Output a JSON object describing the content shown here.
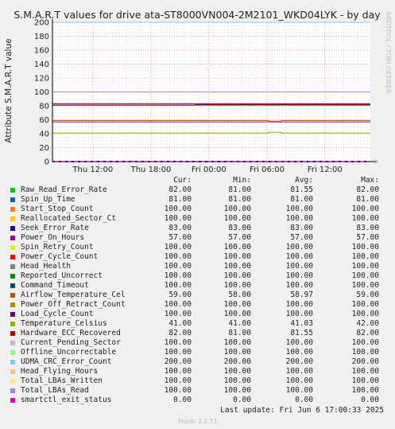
{
  "title": "S.M.A.R.T values for drive ata-ST8000VN004-2M2101_WKD04LYK - by day",
  "side_text": "RRDTOOL / TOBI OETIKER",
  "footer": "Last update: Fri Jun  6 17:00:33 2025",
  "munin_version": "Munin 2.0.73",
  "legend_headers": [
    "Cur:",
    "Min:",
    "Avg:",
    "Max:"
  ],
  "chart_data": {
    "type": "line",
    "ylabel": "Attribute S.M.A.R.T value",
    "ylim": [
      0,
      200
    ],
    "yticks": [
      0,
      20,
      40,
      60,
      80,
      100,
      120,
      140,
      160,
      180,
      200
    ],
    "xticks": [
      "Thu 12:00",
      "Thu 18:00",
      "Fri 00:00",
      "Fri 06:00",
      "Fri 12:00"
    ],
    "grid": true,
    "series": [
      {
        "name": "Raw_Read_Error_Rate",
        "color": "#00cc00",
        "cur": "82.00",
        "min": "81.00",
        "avg": "81.55",
        "max": "82.00"
      },
      {
        "name": "Spin_Up_Time",
        "color": "#0066b3",
        "cur": "81.00",
        "min": "81.00",
        "avg": "81.00",
        "max": "81.00"
      },
      {
        "name": "Start_Stop_Count",
        "color": "#ff8000",
        "cur": "100.00",
        "min": "100.00",
        "avg": "100.00",
        "max": "100.00"
      },
      {
        "name": "Reallocated_Sector_Ct",
        "color": "#ffcc00",
        "cur": "100.00",
        "min": "100.00",
        "avg": "100.00",
        "max": "100.00"
      },
      {
        "name": "Seek_Error_Rate",
        "color": "#330099",
        "cur": "83.00",
        "min": "83.00",
        "avg": "83.00",
        "max": "83.00"
      },
      {
        "name": "Power_On_Hours",
        "color": "#990099",
        "cur": "57.00",
        "min": "57.00",
        "avg": "57.00",
        "max": "57.00"
      },
      {
        "name": "Spin_Retry_Count",
        "color": "#ccff00",
        "cur": "100.00",
        "min": "100.00",
        "avg": "100.00",
        "max": "100.00"
      },
      {
        "name": "Power_Cycle_Count",
        "color": "#ff0000",
        "cur": "100.00",
        "min": "100.00",
        "avg": "100.00",
        "max": "100.00"
      },
      {
        "name": "Head_Health",
        "color": "#808080",
        "cur": "100.00",
        "min": "100.00",
        "avg": "100.00",
        "max": "100.00"
      },
      {
        "name": "Reported_Uncorrect",
        "color": "#008f00",
        "cur": "100.00",
        "min": "100.00",
        "avg": "100.00",
        "max": "100.00"
      },
      {
        "name": "Command_Timeout",
        "color": "#00487d",
        "cur": "100.00",
        "min": "100.00",
        "avg": "100.00",
        "max": "100.00"
      },
      {
        "name": "Airflow_Temperature_Cel",
        "color": "#b35a00",
        "cur": "59.00",
        "min": "58.00",
        "avg": "58.97",
        "max": "59.00"
      },
      {
        "name": "Power_Off_Retract_Count",
        "color": "#b38f00",
        "cur": "100.00",
        "min": "100.00",
        "avg": "100.00",
        "max": "100.00"
      },
      {
        "name": "Load_Cycle_Count",
        "color": "#6b006b",
        "cur": "100.00",
        "min": "100.00",
        "avg": "100.00",
        "max": "100.00"
      },
      {
        "name": "Temperature_Celsius",
        "color": "#8fb300",
        "cur": "41.00",
        "min": "41.00",
        "avg": "41.03",
        "max": "42.00"
      },
      {
        "name": "Hardware_ECC_Recovered",
        "color": "#b30000",
        "cur": "82.00",
        "min": "81.00",
        "avg": "81.55",
        "max": "82.00"
      },
      {
        "name": "Current_Pending_Sector",
        "color": "#bebebe",
        "cur": "100.00",
        "min": "100.00",
        "avg": "100.00",
        "max": "100.00"
      },
      {
        "name": "Offline_Uncorrectable",
        "color": "#80ff80",
        "cur": "100.00",
        "min": "100.00",
        "avg": "100.00",
        "max": "100.00"
      },
      {
        "name": "UDMA_CRC_Error_Count",
        "color": "#80c9ff",
        "cur": "200.00",
        "min": "200.00",
        "avg": "200.00",
        "max": "200.00"
      },
      {
        "name": "Head_Flying_Hours",
        "color": "#ffc080",
        "cur": "100.00",
        "min": "100.00",
        "avg": "100.00",
        "max": "100.00"
      },
      {
        "name": "Total_LBAs_Written",
        "color": "#ffe680",
        "cur": "100.00",
        "min": "100.00",
        "avg": "100.00",
        "max": "100.00"
      },
      {
        "name": "Total_LBAs_Read",
        "color": "#aa80ff",
        "cur": "100.00",
        "min": "100.00",
        "avg": "100.00",
        "max": "100.00"
      },
      {
        "name": "smartctl_exit_status",
        "color": "#ee00cc",
        "cur": "0.00",
        "min": "0.00",
        "avg": "0.00",
        "max": "0.00"
      }
    ]
  }
}
